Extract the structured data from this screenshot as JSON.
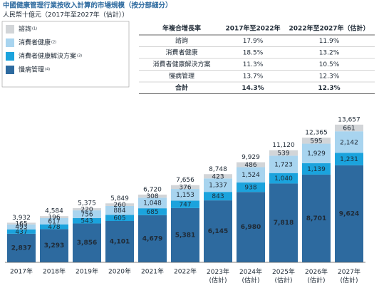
{
  "chart_data": {
    "type": "stacked_bar",
    "title": "中國健康管理行業按收入計算的市場規模（按分部細分）",
    "subtitle": "人民幣十億元（2017年至2027年（估計））",
    "categories": [
      "2017年",
      "2018年",
      "2019年",
      "2020年",
      "2021年",
      "2022年",
      "2023年(估計)",
      "2024年(估計)",
      "2025年(估計)",
      "2026年(估計)",
      "2027年(估計)"
    ],
    "ylim": [
      0,
      14000
    ],
    "series": [
      {
        "name": "慢病管理",
        "footnote": "(4)",
        "color": "#2d6a9f",
        "label_color": "#ffffff",
        "values": [
          2837,
          3293,
          3856,
          4101,
          4679,
          5381,
          6145,
          6980,
          7818,
          8701,
          9624
        ],
        "value_labels": [
          "2,837",
          "3,293",
          "3,856",
          "4,101",
          "4,679",
          "5,381",
          "6,145",
          "6,980",
          "7,818",
          "8,701",
          "9,624"
        ]
      },
      {
        "name": "消費者健康解決方案",
        "footnote": "(3)",
        "color": "#1ba3dd",
        "label_color": "#ffffff",
        "values": [
          437,
          478,
          543,
          605,
          685,
          747,
          843,
          938,
          1040,
          1139,
          1231
        ],
        "value_labels": [
          "437",
          "478",
          "543",
          "605",
          "685",
          "747",
          "843",
          "938",
          "1,040",
          "1,139",
          "1,231"
        ]
      },
      {
        "name": "消費者健康",
        "footnote": "(2)",
        "color": "#a8d4ef",
        "label_color": "#1f2a36",
        "values": [
          493,
          617,
          756,
          884,
          1048,
          1153,
          1337,
          1524,
          1723,
          1929,
          2142
        ],
        "value_labels": [
          "493",
          "617",
          "756",
          "884",
          "1,048",
          "1,153",
          "1,337",
          "1,524",
          "1,723",
          "1,929",
          "2,142"
        ]
      },
      {
        "name": "諮詢",
        "footnote": "(1)",
        "color": "#d2d5d8",
        "label_color": "#1f2a36",
        "values": [
          165,
          196,
          220,
          260,
          308,
          376,
          423,
          486,
          539,
          595,
          661
        ],
        "value_labels": [
          "165",
          "196",
          "220",
          "260",
          "308",
          "376",
          "423",
          "486",
          "539",
          "595",
          "661"
        ]
      }
    ],
    "totals": [
      3932,
      4584,
      5375,
      5849,
      6720,
      7656,
      8748,
      9929,
      11120,
      12365,
      13657
    ],
    "total_labels": [
      "3,932",
      "4,584",
      "5,375",
      "5,849",
      "6,720",
      "7,656",
      "8,748",
      "9,929",
      "11,120",
      "12,365",
      "13,657"
    ],
    "table": {
      "header": [
        "年複合增長率",
        "2017年至2022年",
        "2022年至2027年（估計）"
      ],
      "rows": [
        [
          "諮詢",
          "17.9%",
          "11.9%"
        ],
        [
          "消費者健康",
          "18.5%",
          "13.2%"
        ],
        [
          "消費者健康解決方案",
          "11.3%",
          "10.5%"
        ],
        [
          "慢病管理",
          "13.7%",
          "12.3%"
        ],
        [
          "合計",
          "14.3%",
          "12.3%"
        ]
      ]
    }
  }
}
